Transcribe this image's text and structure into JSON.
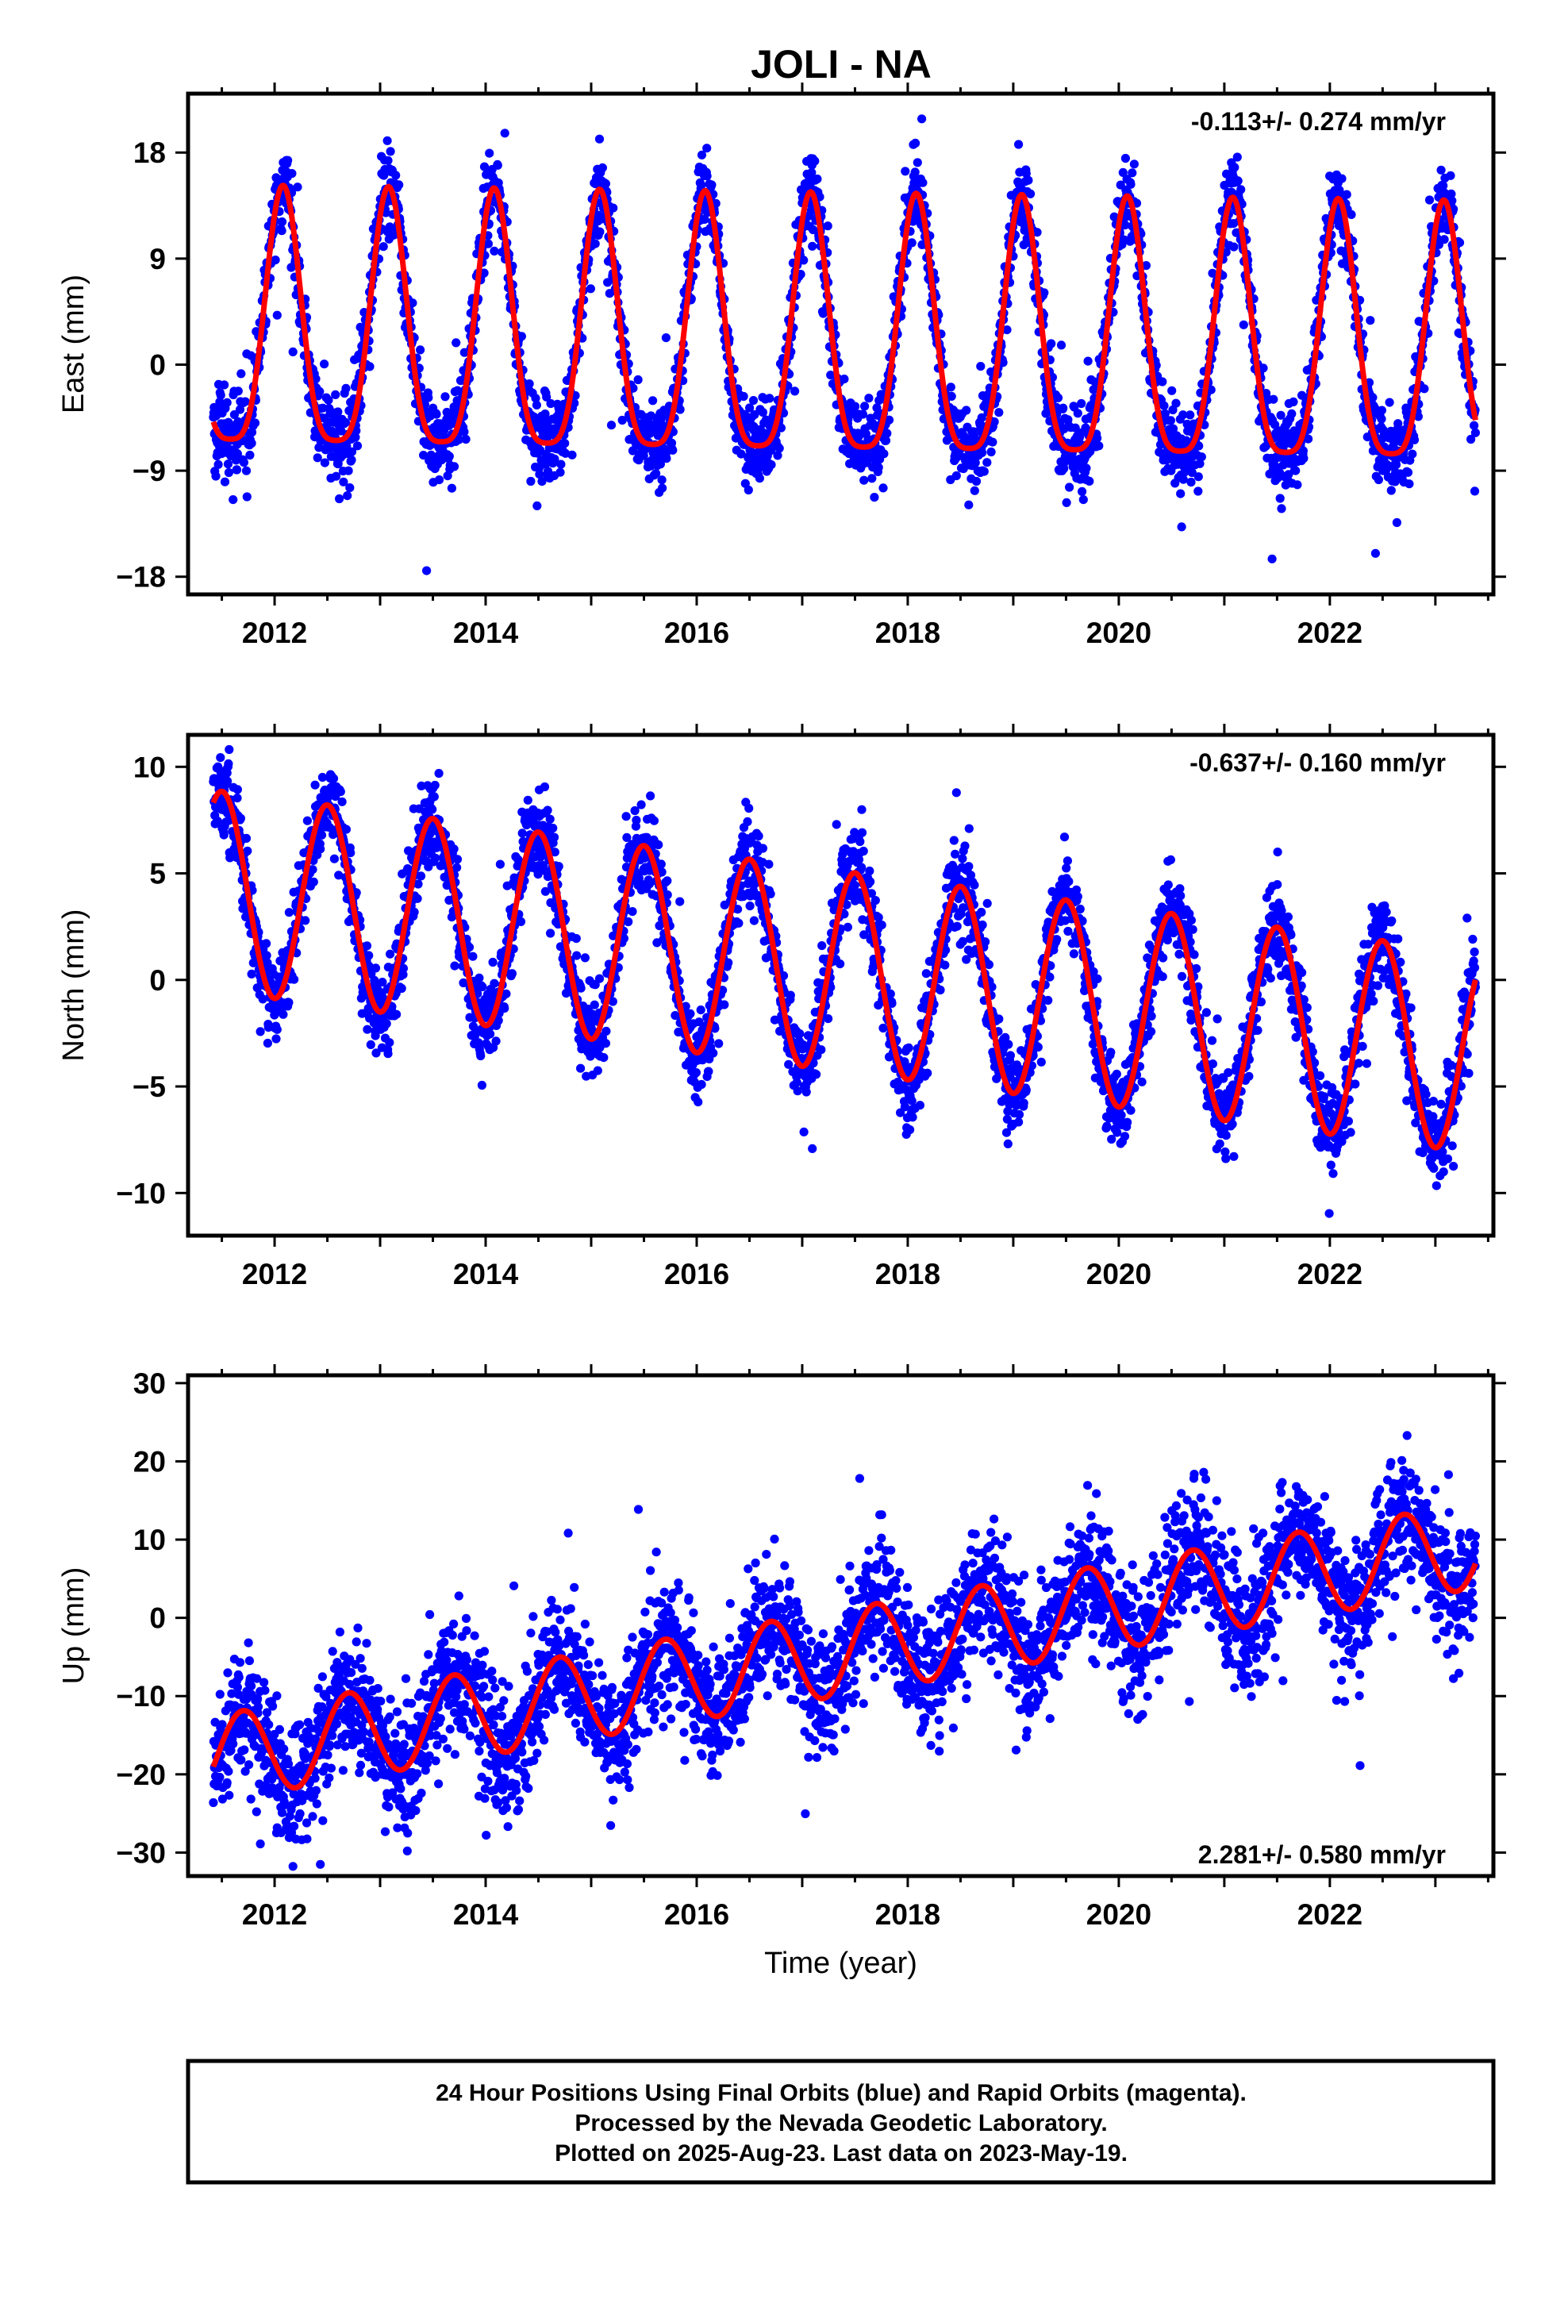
{
  "title": "JOLI - NA",
  "colors": {
    "points": "#0000ff",
    "fit": "#ff0000",
    "frame": "#000000",
    "background": "#ffffff"
  },
  "chart_data": [
    {
      "type": "scatter",
      "id": "east",
      "ylabel": "East (mm)",
      "xlabel": "",
      "xlim": [
        2011.18,
        2023.55
      ],
      "ylim": [
        -19.5,
        23
      ],
      "xticks": [
        2012,
        2014,
        2016,
        2018,
        2020,
        2022
      ],
      "xtick_labels": [
        "2012",
        "2014",
        "2016",
        "2018",
        "2020",
        "2022"
      ],
      "yticks": [
        -18,
        -9,
        0,
        9,
        18
      ],
      "ytick_labels": [
        "−18",
        "−9",
        "0",
        "9",
        "18"
      ],
      "rate_label": "-0.113+/- 0.274 mm/yr",
      "rate_position": "top-right",
      "model": {
        "intercept": 2.0,
        "rate_mm_per_yr": -0.113,
        "annual_amplitude": 10.8,
        "annual_phase_peak": 0.08,
        "semiannual_amplitude": 2.5,
        "semiannual_phase_peak": 0.08
      },
      "noise_sd": 1.8,
      "series": [
        {
          "name": "24 hour positions (final orbits)",
          "kind": "points",
          "x_start": 2011.42,
          "x_end": 2023.38,
          "n": 3600
        },
        {
          "name": "fit",
          "kind": "line",
          "x_start": 2011.42,
          "x_end": 2023.38
        }
      ]
    },
    {
      "type": "scatter",
      "id": "north",
      "ylabel": "North (mm)",
      "xlabel": "",
      "xlim": [
        2011.18,
        2023.55
      ],
      "ylim": [
        -12,
        11.5
      ],
      "xticks": [
        2012,
        2014,
        2016,
        2018,
        2020,
        2022
      ],
      "xtick_labels": [
        "2012",
        "2014",
        "2016",
        "2018",
        "2020",
        "2022"
      ],
      "yticks": [
        -10,
        -5,
        0,
        5,
        10
      ],
      "ytick_labels": [
        "−10",
        "−5",
        "0",
        "5",
        "10"
      ],
      "rate_label": "-0.637+/- 0.160 mm/yr",
      "rate_position": "top-right",
      "model": {
        "intercept": 4.2,
        "rate_mm_per_yr": -0.637,
        "annual_amplitude": 4.7,
        "annual_phase_peak": 0.5,
        "semiannual_amplitude": 0.0,
        "semiannual_phase_peak": 0.0
      },
      "noise_sd": 1.0,
      "series": [
        {
          "name": "24 hour positions (final orbits)",
          "kind": "points",
          "x_start": 2011.42,
          "x_end": 2023.38,
          "n": 3600
        },
        {
          "name": "fit",
          "kind": "line",
          "x_start": 2011.42,
          "x_end": 2023.38
        }
      ]
    },
    {
      "type": "scatter",
      "id": "up",
      "ylabel": "Up (mm)",
      "xlabel": "Time (year)",
      "xlim": [
        2011.18,
        2023.55
      ],
      "ylim": [
        -33,
        31
      ],
      "xticks": [
        2012,
        2014,
        2016,
        2018,
        2020,
        2022
      ],
      "xtick_labels": [
        "2012",
        "2014",
        "2016",
        "2018",
        "2020",
        "2022"
      ],
      "yticks": [
        -30,
        -20,
        -10,
        0,
        10,
        20,
        30
      ],
      "ytick_labels": [
        "−30",
        "−20",
        "−10",
        "0",
        "10",
        "20",
        "30"
      ],
      "rate_label": "2.281+/- 0.580 mm/yr",
      "rate_position": "bottom-right",
      "model": {
        "intercept": -18.0,
        "rate_mm_per_yr": 2.281,
        "annual_amplitude": 5.5,
        "annual_phase_peak": 0.7,
        "semiannual_amplitude": 0.0,
        "semiannual_phase_peak": 0.0
      },
      "noise_sd": 4.0,
      "series": [
        {
          "name": "24 hour positions (final orbits)",
          "kind": "points",
          "x_start": 2011.42,
          "x_end": 2023.38,
          "n": 3600
        },
        {
          "name": "fit",
          "kind": "line",
          "x_start": 2011.42,
          "x_end": 2023.38
        }
      ]
    }
  ],
  "footer": {
    "line1": "24 Hour Positions Using Final Orbits (blue) and Rapid Orbits (magenta).",
    "line2": "Processed by the Nevada Geodetic Laboratory.",
    "line3": "Plotted on 2025-Aug-23. Last data on 2023-May-19."
  }
}
